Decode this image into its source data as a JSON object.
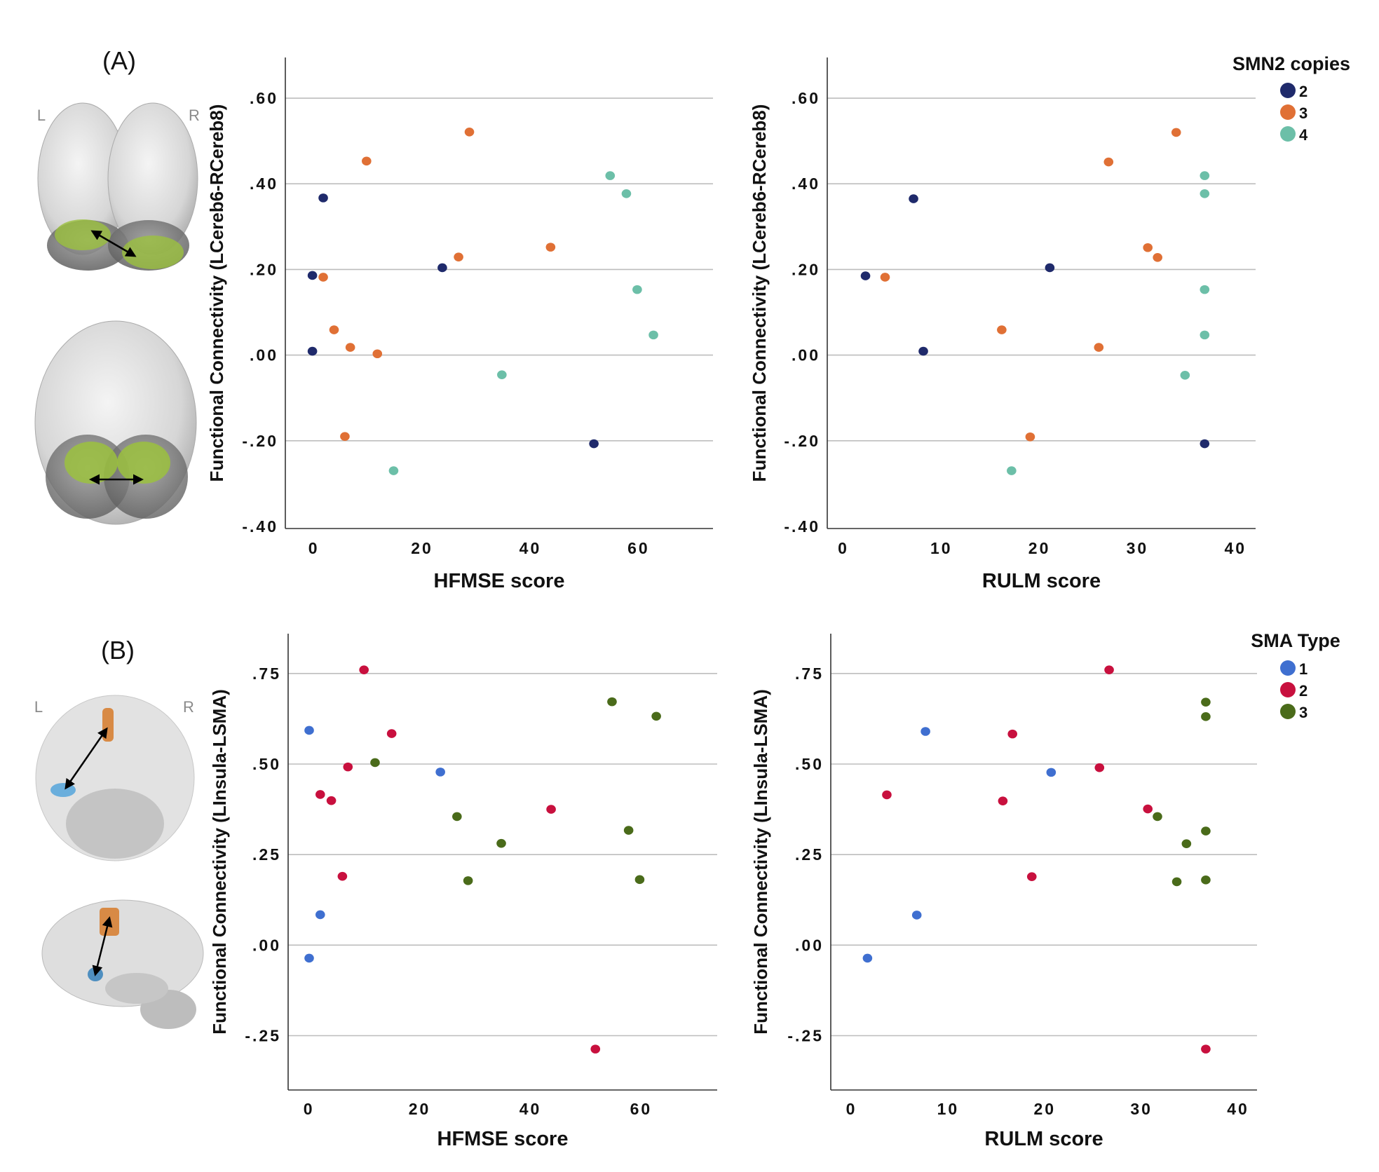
{
  "panels": {
    "a_label": "(A)",
    "b_label": "(B)",
    "left_marker": "L",
    "right_marker": "R"
  },
  "legends": {
    "smn2": {
      "title": "SMN2 copies",
      "items": [
        {
          "label": "2",
          "color": "#1f2a6b"
        },
        {
          "label": "3",
          "color": "#e07035"
        },
        {
          "label": "4",
          "color": "#6cbfa8"
        }
      ]
    },
    "sma": {
      "title": "SMA Type",
      "items": [
        {
          "label": "1",
          "color": "#3f6fd0"
        },
        {
          "label": "2",
          "color": "#c8103e"
        },
        {
          "label": "3",
          "color": "#4a6b1a"
        }
      ]
    }
  },
  "chart_data": [
    {
      "type": "scatter",
      "panel": "A",
      "xlabel": "HFMSE score",
      "ylabel": "Functional Connectivity (LCereb6-RCereb8)",
      "xlim": [
        -5,
        74
      ],
      "ylim": [
        -0.405,
        0.695
      ],
      "xticks": [
        {
          "v": 0,
          "label": "0"
        },
        {
          "v": 20,
          "label": "20"
        },
        {
          "v": 40,
          "label": "40"
        },
        {
          "v": 60,
          "label": "60"
        }
      ],
      "yticks": [
        {
          "v": 0.6,
          "label": ".60"
        },
        {
          "v": 0.4,
          "label": ".40"
        },
        {
          "v": 0.2,
          "label": ".20"
        },
        {
          "v": 0,
          "label": ".00"
        },
        {
          "v": -0.2,
          "label": "-.20"
        },
        {
          "v": -0.4,
          "label": "-.40"
        }
      ],
      "grid": true,
      "legend": "smn2",
      "series": [
        {
          "name": "2",
          "color": "#1f2a6b",
          "points": [
            [
              0,
              0.186
            ],
            [
              2,
              0.367
            ],
            [
              0,
              0.009
            ],
            [
              24,
              0.204
            ],
            [
              52,
              -0.207
            ]
          ]
        },
        {
          "name": "3",
          "color": "#e07035",
          "points": [
            [
              10,
              0.453
            ],
            [
              29,
              0.521
            ],
            [
              2,
              0.182
            ],
            [
              27,
              0.229
            ],
            [
              44,
              0.252
            ],
            [
              4,
              0.059
            ],
            [
              7,
              0.018
            ],
            [
              12,
              0.003
            ],
            [
              6,
              -0.19
            ]
          ]
        },
        {
          "name": "4",
          "color": "#6cbfa8",
          "points": [
            [
              55,
              0.419
            ],
            [
              58,
              0.377
            ],
            [
              60,
              0.153
            ],
            [
              63,
              0.047
            ],
            [
              35,
              -0.046
            ],
            [
              15,
              -0.27
            ]
          ]
        }
      ]
    },
    {
      "type": "scatter",
      "panel": "A",
      "xlabel": "RULM score",
      "ylabel": "Functional Connectivity (LCereb6-RCereb8)",
      "xlim": [
        -1.5,
        42.2
      ],
      "ylim": [
        -0.405,
        0.695
      ],
      "xticks": [
        {
          "v": 0,
          "label": "0"
        },
        {
          "v": 10,
          "label": "10"
        },
        {
          "v": 20,
          "label": "20"
        },
        {
          "v": 30,
          "label": "30"
        },
        {
          "v": 40,
          "label": "40"
        }
      ],
      "yticks": [
        {
          "v": 0.6,
          "label": ".60"
        },
        {
          "v": 0.4,
          "label": ".40"
        },
        {
          "v": 0.2,
          "label": ".20"
        },
        {
          "v": 0,
          "label": ".00"
        },
        {
          "v": -0.2,
          "label": "-.20"
        },
        {
          "v": -0.4,
          "label": "-.40"
        }
      ],
      "grid": true,
      "legend": "smn2",
      "series": [
        {
          "name": "2",
          "color": "#1f2a6b",
          "points": [
            [
              2.4,
              0.185
            ],
            [
              7.3,
              0.365
            ],
            [
              8.3,
              0.009
            ],
            [
              21.2,
              0.204
            ],
            [
              37,
              -0.207
            ]
          ]
        },
        {
          "name": "3",
          "color": "#e07035",
          "points": [
            [
              4.4,
              0.182
            ],
            [
              27.2,
              0.451
            ],
            [
              34.1,
              0.52
            ],
            [
              31.2,
              0.251
            ],
            [
              32.2,
              0.228
            ],
            [
              16.3,
              0.059
            ],
            [
              26.2,
              0.018
            ],
            [
              19.2,
              -0.191
            ]
          ]
        },
        {
          "name": "4",
          "color": "#6cbfa8",
          "points": [
            [
              37,
              0.419
            ],
            [
              37,
              0.377
            ],
            [
              37,
              0.153
            ],
            [
              37,
              0.047
            ],
            [
              35,
              -0.047
            ],
            [
              17.3,
              -0.27
            ]
          ]
        }
      ]
    },
    {
      "type": "scatter",
      "panel": "B",
      "xlabel": "HFMSE score",
      "ylabel": "Functional Connectivity (LInsula-LSMA)",
      "xlim": [
        -3.5,
        74
      ],
      "ylim": [
        -0.4,
        0.86
      ],
      "xticks": [
        {
          "v": 0,
          "label": "0"
        },
        {
          "v": 20,
          "label": "20"
        },
        {
          "v": 40,
          "label": "40"
        },
        {
          "v": 60,
          "label": "60"
        }
      ],
      "yticks": [
        {
          "v": 0.75,
          "label": ".75"
        },
        {
          "v": 0.5,
          "label": ".50"
        },
        {
          "v": 0.25,
          "label": ".25"
        },
        {
          "v": 0,
          "label": ".00"
        },
        {
          "v": -0.25,
          "label": "-.25"
        }
      ],
      "grid": true,
      "legend": "sma",
      "series": [
        {
          "name": "1",
          "color": "#3f6fd0",
          "points": [
            [
              0.3,
              0.593
            ],
            [
              2.3,
              0.084
            ],
            [
              0.3,
              -0.036
            ],
            [
              24,
              0.478
            ]
          ]
        },
        {
          "name": "2",
          "color": "#c8103e",
          "points": [
            [
              10.2,
              0.76
            ],
            [
              15.2,
              0.584
            ],
            [
              7.3,
              0.492
            ],
            [
              2.3,
              0.416
            ],
            [
              4.3,
              0.399
            ],
            [
              6.3,
              0.19
            ],
            [
              44,
              0.375
            ],
            [
              52,
              -0.287
            ]
          ]
        },
        {
          "name": "3",
          "color": "#4a6b1a",
          "points": [
            [
              12.2,
              0.504
            ],
            [
              55,
              0.672
            ],
            [
              63,
              0.632
            ],
            [
              27,
              0.355
            ],
            [
              35,
              0.281
            ],
            [
              58,
              0.317
            ],
            [
              29,
              0.178
            ],
            [
              60,
              0.181
            ]
          ]
        }
      ]
    },
    {
      "type": "scatter",
      "panel": "B",
      "xlabel": "RULM score",
      "ylabel": "Functional Connectivity (LInsula-LSMA)",
      "xlim": [
        -2,
        42.1
      ],
      "ylim": [
        -0.4,
        0.86
      ],
      "xticks": [
        {
          "v": 0,
          "label": "0"
        },
        {
          "v": 10,
          "label": "10"
        },
        {
          "v": 20,
          "label": "20"
        },
        {
          "v": 30,
          "label": "30"
        },
        {
          "v": 40,
          "label": "40"
        }
      ],
      "yticks": [
        {
          "v": 0.75,
          "label": ".75"
        },
        {
          "v": 0.5,
          "label": ".50"
        },
        {
          "v": 0.25,
          "label": ".25"
        },
        {
          "v": 0,
          "label": ".00"
        },
        {
          "v": -0.25,
          "label": "-.25"
        }
      ],
      "grid": true,
      "legend": "sma",
      "series": [
        {
          "name": "1",
          "color": "#3f6fd0",
          "points": [
            [
              1.8,
              -0.036
            ],
            [
              6.9,
              0.083
            ],
            [
              7.8,
              0.59
            ],
            [
              20.8,
              0.477
            ]
          ]
        },
        {
          "name": "2",
          "color": "#c8103e",
          "points": [
            [
              3.8,
              0.415
            ],
            [
              26.8,
              0.76
            ],
            [
              16.8,
              0.583
            ],
            [
              25.8,
              0.49
            ],
            [
              15.8,
              0.398
            ],
            [
              30.8,
              0.376
            ],
            [
              18.8,
              0.189
            ],
            [
              36.8,
              -0.287
            ]
          ]
        },
        {
          "name": "3",
          "color": "#4a6b1a",
          "points": [
            [
              36.8,
              0.671
            ],
            [
              36.8,
              0.631
            ],
            [
              31.8,
              0.355
            ],
            [
              34.8,
              0.28
            ],
            [
              36.8,
              0.315
            ],
            [
              33.8,
              0.175
            ],
            [
              36.8,
              0.18
            ]
          ]
        }
      ]
    }
  ]
}
